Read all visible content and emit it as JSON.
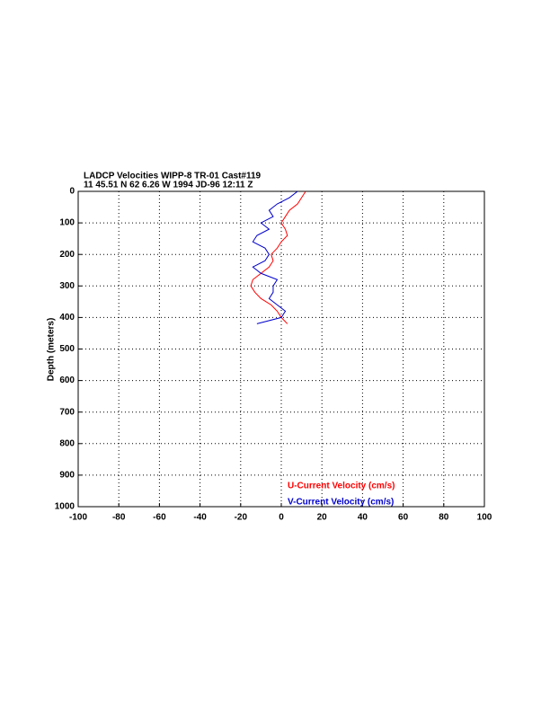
{
  "chart_data": {
    "type": "line",
    "title": "LADCP Velocities WIPP-8 TR-01 Cast#119",
    "subtitle": "11 45.51 N  62  6.26 W  1994 JD-96 12:11 Z",
    "y_label": "Depth (meters)",
    "depth": [
      0,
      20,
      40,
      60,
      80,
      100,
      120,
      140,
      160,
      180,
      200,
      220,
      240,
      260,
      280,
      300,
      320,
      340,
      360,
      380,
      400,
      420
    ],
    "series": [
      {
        "name": "U-Current Velocity (cm/s)",
        "color": "#ff0000",
        "values": [
          12,
          10,
          8,
          4,
          2,
          0,
          2,
          3,
          0,
          -2,
          -5,
          -4,
          -6,
          -10,
          -14,
          -15,
          -13,
          -10,
          -5,
          -2,
          0,
          3
        ]
      },
      {
        "name": "V-Current Velocity (cm/s)",
        "color": "#0000cc",
        "values": [
          8,
          4,
          -2,
          -6,
          -4,
          -10,
          -6,
          -12,
          -14,
          -8,
          -6,
          -8,
          -14,
          -10,
          -2,
          -4,
          -4,
          -6,
          -2,
          2,
          0,
          -12
        ]
      }
    ],
    "xlim": [
      -100,
      100
    ],
    "xticks": [
      -100,
      -80,
      -60,
      -40,
      -20,
      0,
      20,
      40,
      60,
      80,
      100
    ],
    "ylim": [
      1000,
      0
    ],
    "yticks": [
      0,
      100,
      200,
      300,
      400,
      500,
      600,
      700,
      800,
      900,
      1000
    ],
    "grid": true
  }
}
